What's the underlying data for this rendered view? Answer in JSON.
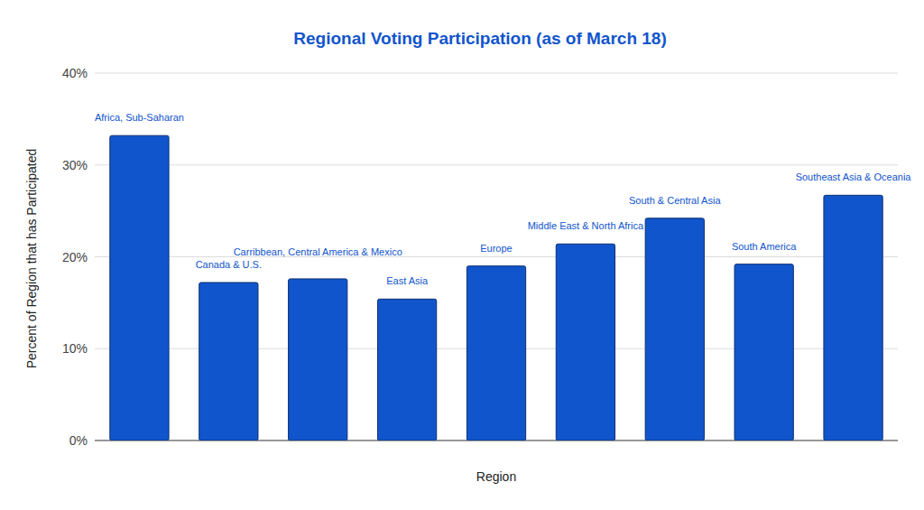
{
  "chart_data": {
    "type": "bar",
    "title": "Regional Voting Participation (as of March 18)",
    "x_label": "Region",
    "y_label": "Percent of Region that has Participated",
    "categories": [
      "Africa, Sub-Saharan",
      "Canada & U.S.",
      "Carribbean, Central America & Mexico",
      "East Asia",
      "Europe",
      "Middle East & North Africa",
      "South & Central Asia",
      "South America",
      "Southeast Asia & Oceania"
    ],
    "values": [
      33.2,
      17.2,
      17.6,
      15.4,
      19.0,
      21.4,
      24.2,
      19.2,
      26.7
    ],
    "color": "#1155cc",
    "ylim": [
      0,
      40
    ],
    "yticks": [
      {
        "value": 0,
        "label": "0%"
      },
      {
        "value": 10,
        "label": "10%"
      },
      {
        "value": 20,
        "label": "20%"
      },
      {
        "value": 30,
        "label": "30%"
      },
      {
        "value": 40,
        "label": "40%"
      }
    ],
    "grid": true,
    "tick_labels": "y"
  }
}
